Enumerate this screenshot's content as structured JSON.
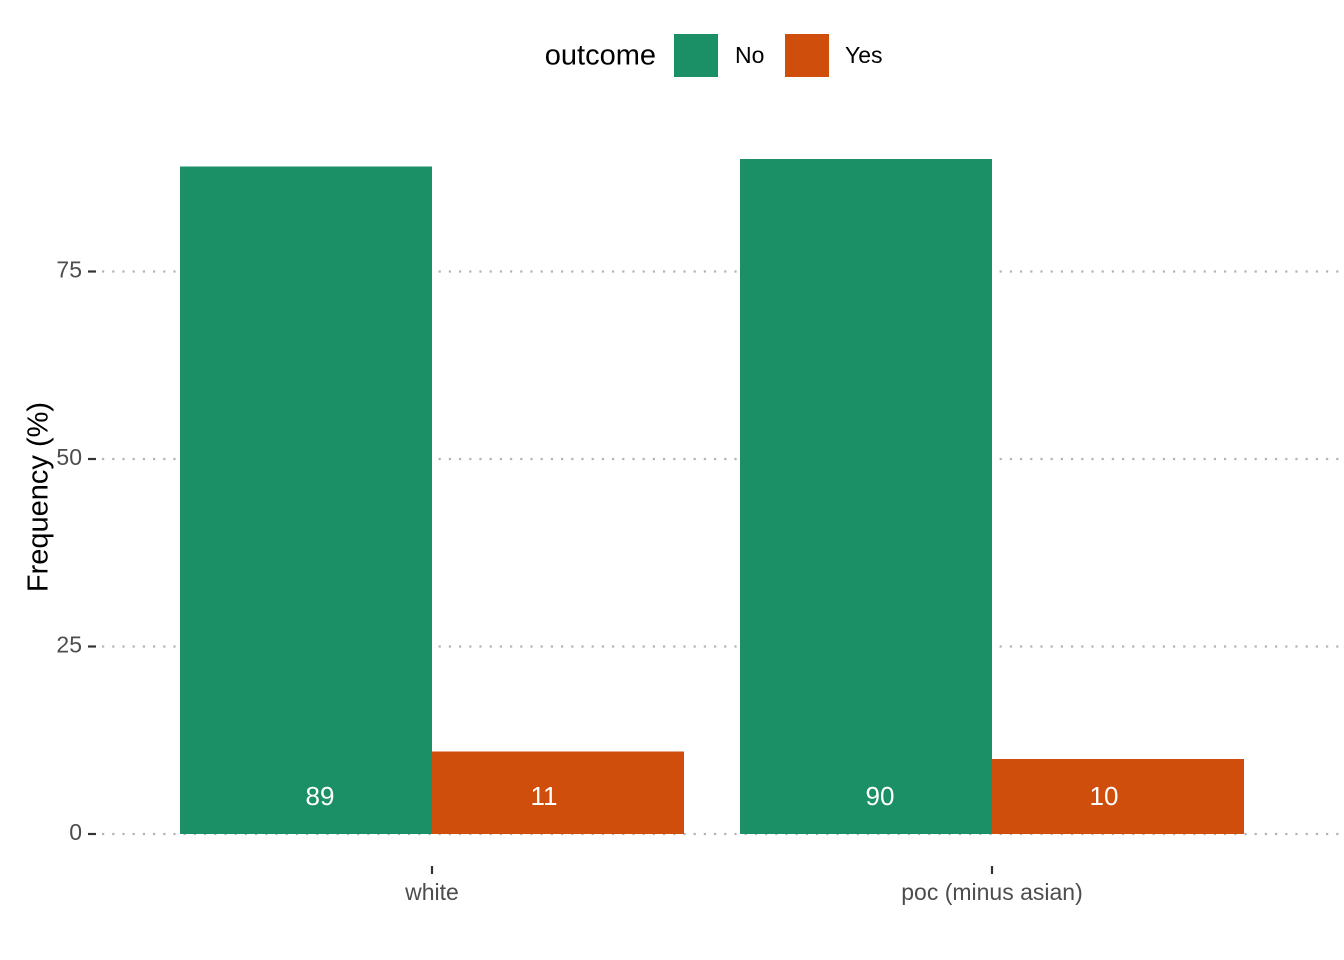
{
  "chart_data": {
    "type": "bar",
    "title": "",
    "xlabel": "",
    "ylabel": "Frequency (%)",
    "categories": [
      "white",
      "poc (minus asian)"
    ],
    "series": [
      {
        "name": "No",
        "color": "#1b9066",
        "values": [
          89,
          90
        ],
        "labels": [
          "89",
          "90"
        ]
      },
      {
        "name": "Yes",
        "color": "#d04e0b",
        "values": [
          11,
          10
        ],
        "labels": [
          "11",
          "10"
        ]
      }
    ],
    "ylim": [
      0,
      92
    ],
    "yticks": [
      0,
      25,
      50,
      75
    ],
    "ytick_labels": [
      "0",
      "25",
      "50",
      "75"
    ],
    "grid": "horizontal dotted",
    "legend": {
      "title": "outcome",
      "placement": "top-center"
    }
  }
}
